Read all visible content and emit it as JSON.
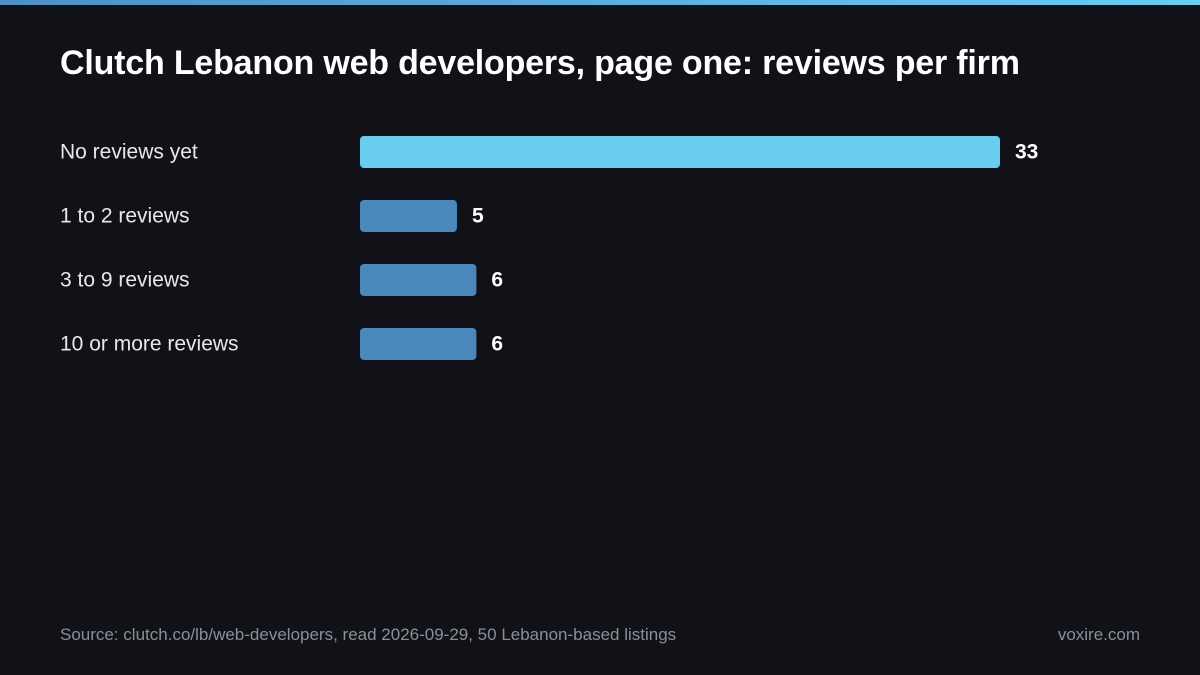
{
  "colors": {
    "background": "#111217",
    "highlight_bar": "#6ccdf0",
    "bar": "#4a87bb",
    "accent_line": "#6ccdf0"
  },
  "chart_data": {
    "type": "bar",
    "orientation": "horizontal",
    "title": "Clutch Lebanon web developers, page one: reviews per firm",
    "categories": [
      "No reviews yet",
      "1 to 2 reviews",
      "3 to 9 reviews",
      "10 or more reviews"
    ],
    "values": [
      33,
      5,
      6,
      6
    ],
    "value_labels": [
      "33",
      "5",
      "6",
      "6"
    ],
    "highlight_index": 0,
    "xlim": [
      0,
      33
    ],
    "grid": false,
    "legend": "none"
  },
  "footer": {
    "source": "Source: clutch.co/lb/web-developers, read 2026-09-29, 50 Lebanon-based listings",
    "brand": "voxire.com"
  }
}
